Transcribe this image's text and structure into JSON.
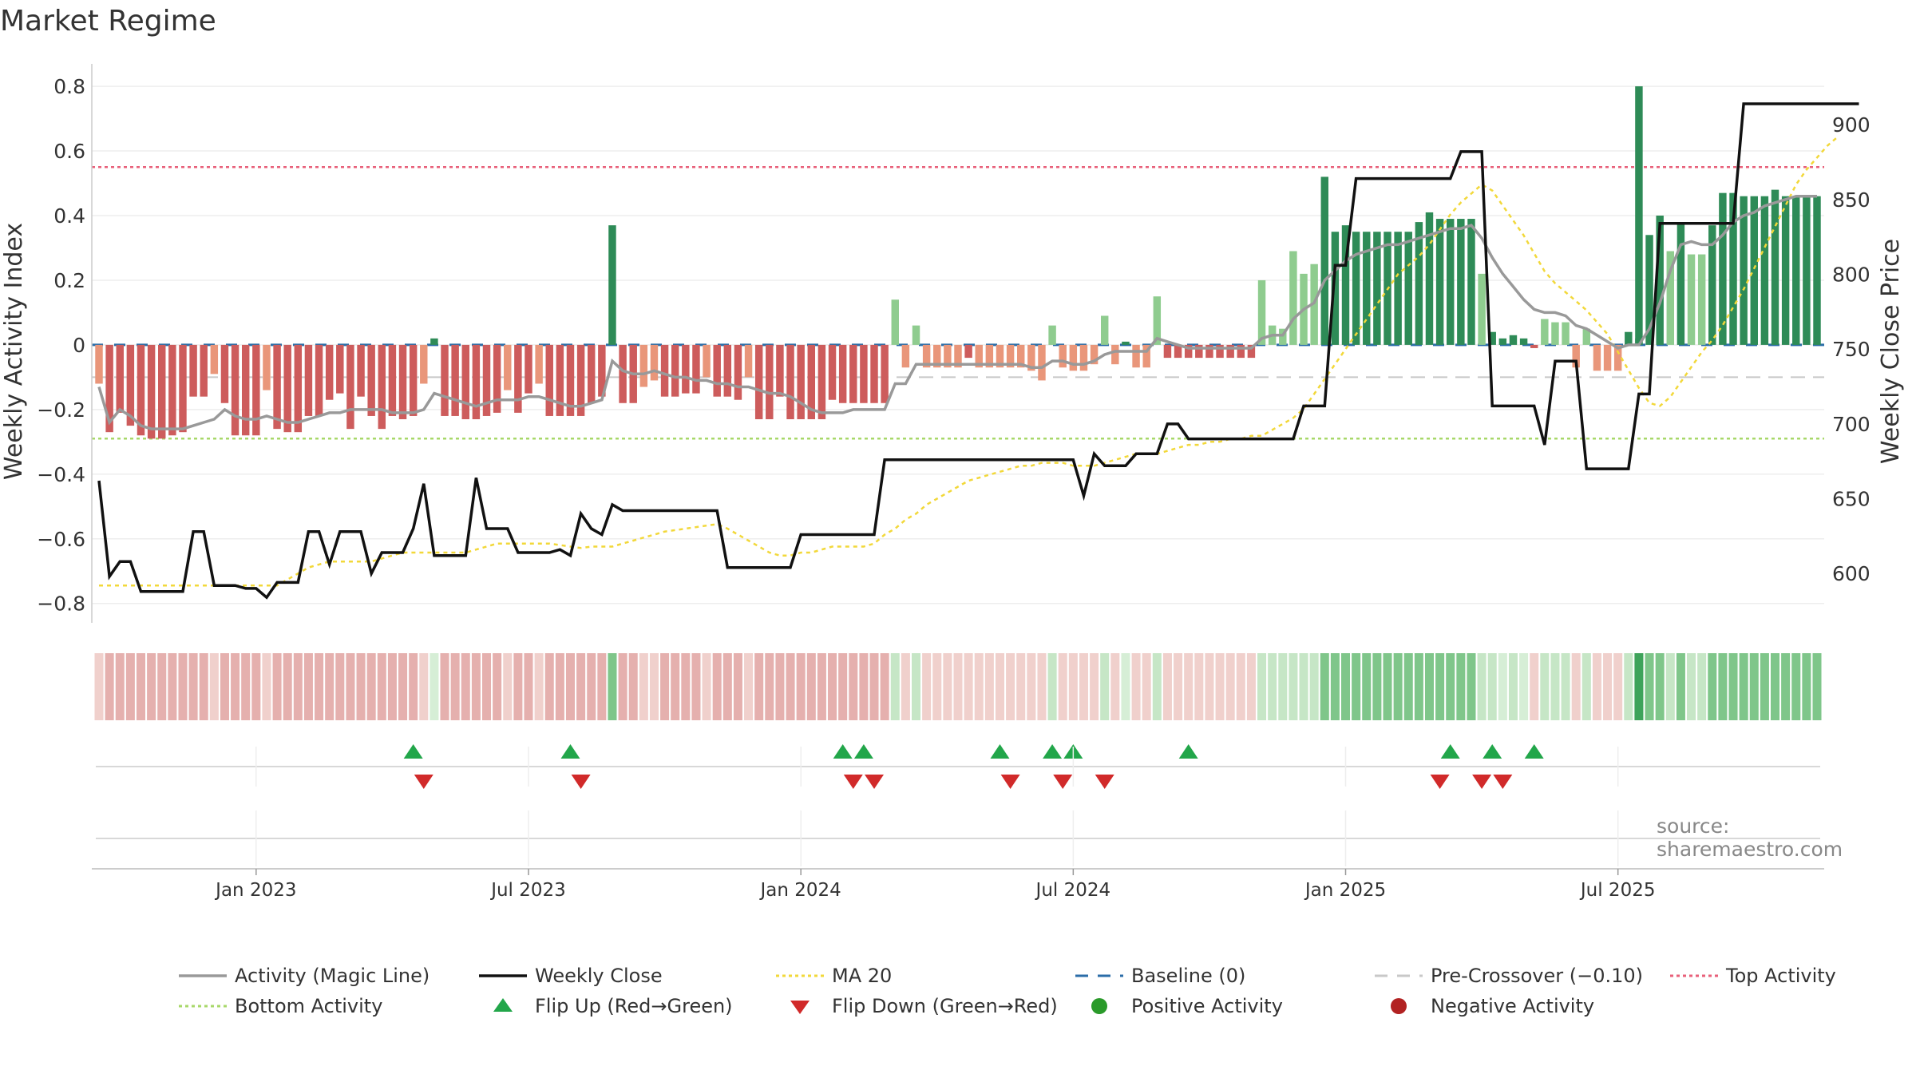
{
  "title": "Market Regime",
  "source": "source: sharemaestro.com",
  "colors": {
    "magic": "#999999",
    "close": "#111111",
    "ma20": "#f2d83a",
    "baseline": "#2b6da8",
    "precross": "#c8c8c8",
    "top": "#e8607a",
    "bottom": "#a8d86a",
    "green_strong": "#2e8b57",
    "green_light": "#8fcc8f",
    "red_strong": "#cd5c5c",
    "red_light": "#e9967a",
    "flip_up": "#22a64a",
    "flip_down": "#d12a2a",
    "pos_dot": "#2a9a2a",
    "neg_dot": "#b22222"
  },
  "chart_data": {
    "type": "bar",
    "title": "Market Regime",
    "ylabel": "Weekly Activity Index",
    "y2label": "Weekly Close Price",
    "ylim": [
      -0.86,
      0.82
    ],
    "y2lim": [
      567,
      930
    ],
    "yticks": [
      "0.8",
      "0.6",
      "0.4",
      "0.2",
      "0",
      "−0.2",
      "−0.4",
      "−0.6",
      "−0.8"
    ],
    "y2ticks": [
      "900",
      "850",
      "800",
      "750",
      "700",
      "650",
      "600"
    ],
    "xticks": [
      "Jan 2023",
      "Jul 2023",
      "Jan 2024",
      "Jul 2024",
      "Jan 2025",
      "Jul 2025"
    ],
    "xtick_positions_week": [
      15,
      41,
      67,
      93,
      119,
      145
    ],
    "reference_lines": {
      "baseline": 0,
      "pre_crossover": -0.1,
      "top_activity": 0.55,
      "bottom_activity": -0.29
    },
    "activity": [
      -0.12,
      -0.27,
      -0.21,
      -0.25,
      -0.28,
      -0.29,
      -0.29,
      -0.28,
      -0.27,
      -0.16,
      -0.16,
      -0.09,
      -0.18,
      -0.28,
      -0.28,
      -0.28,
      -0.14,
      -0.26,
      -0.27,
      -0.27,
      -0.22,
      -0.22,
      -0.17,
      -0.15,
      -0.26,
      -0.16,
      -0.22,
      -0.26,
      -0.22,
      -0.23,
      -0.22,
      -0.12,
      0.02,
      -0.22,
      -0.22,
      -0.23,
      -0.23,
      -0.22,
      -0.21,
      -0.14,
      -0.21,
      -0.15,
      -0.12,
      -0.22,
      -0.22,
      -0.22,
      -0.22,
      -0.18,
      -0.16,
      0.37,
      -0.18,
      -0.18,
      -0.13,
      -0.11,
      -0.16,
      -0.16,
      -0.15,
      -0.15,
      -0.1,
      -0.16,
      -0.16,
      -0.17,
      -0.1,
      -0.23,
      -0.23,
      -0.16,
      -0.23,
      -0.23,
      -0.23,
      -0.23,
      -0.17,
      -0.18,
      -0.18,
      -0.18,
      -0.18,
      -0.18,
      0.14,
      -0.07,
      0.06,
      -0.07,
      -0.07,
      -0.07,
      -0.07,
      -0.04,
      -0.07,
      -0.07,
      -0.07,
      -0.07,
      -0.07,
      -0.08,
      -0.11,
      0.06,
      -0.07,
      -0.08,
      -0.08,
      -0.06,
      0.09,
      -0.06,
      0.01,
      -0.07,
      -0.07,
      0.15,
      -0.04,
      -0.04,
      -0.04,
      -0.04,
      -0.04,
      -0.04,
      -0.04,
      -0.04,
      -0.04,
      0.2,
      0.06,
      0.05,
      0.29,
      0.22,
      0.25,
      0.52,
      0.35,
      0.37,
      0.35,
      0.35,
      0.35,
      0.35,
      0.35,
      0.35,
      0.38,
      0.41,
      0.39,
      0.39,
      0.39,
      0.39,
      0.22,
      0.04,
      0.02,
      0.03,
      0.02,
      -0.01,
      0.08,
      0.07,
      0.07,
      -0.07,
      0.05,
      -0.08,
      -0.08,
      -0.08,
      0.04,
      0.02,
      0.34,
      0.4,
      0.29,
      0.38,
      0.28,
      0.28,
      0.37,
      0.47,
      0.47,
      0.46,
      0.46,
      0.46,
      0.48,
      0.46,
      0.46,
      0.46,
      0.46
    ],
    "activity_spike": {
      "week": 147,
      "value": 0.8
    },
    "weekly_close": [
      662,
      598,
      608,
      608,
      588,
      588,
      588,
      588,
      588,
      628,
      628,
      592,
      592,
      592,
      590,
      590,
      584,
      594,
      594,
      594,
      628,
      628,
      606,
      628,
      628,
      628,
      600,
      614,
      614,
      614,
      630,
      660,
      612,
      612,
      612,
      612,
      664,
      630,
      630,
      630,
      614,
      614,
      614,
      614,
      616,
      612,
      640,
      630,
      626,
      646,
      642,
      642,
      642,
      642,
      642,
      642,
      642,
      642,
      642,
      642,
      604,
      604,
      604,
      604,
      604,
      604,
      604,
      626,
      626,
      626,
      626,
      626,
      626,
      626,
      626,
      676,
      676,
      676,
      676,
      676,
      676,
      676,
      676,
      676,
      676,
      676,
      676,
      676,
      676,
      676,
      676,
      676,
      676,
      676,
      652,
      680,
      672,
      672,
      672,
      680,
      680,
      680,
      700,
      700,
      690,
      690,
      690,
      690,
      690,
      690,
      690,
      690,
      690,
      690,
      690,
      712,
      712,
      712,
      806,
      806,
      864,
      864,
      864,
      864,
      864,
      864,
      864,
      864,
      864,
      864,
      882,
      882,
      882,
      712,
      712,
      712,
      712,
      712,
      686,
      742,
      742,
      742,
      670,
      670,
      670,
      670,
      670,
      720,
      720,
      834,
      834,
      834,
      834,
      834,
      834,
      834,
      834,
      914,
      914,
      914,
      914,
      914,
      914,
      914,
      914,
      914,
      914,
      914,
      914
    ],
    "magic_line": [
      -0.13,
      -0.24,
      -0.2,
      -0.22,
      -0.25,
      -0.26,
      -0.26,
      -0.26,
      -0.26,
      -0.25,
      -0.24,
      -0.23,
      -0.2,
      -0.22,
      -0.23,
      -0.23,
      -0.22,
      -0.23,
      -0.24,
      -0.24,
      -0.23,
      -0.22,
      -0.21,
      -0.21,
      -0.2,
      -0.2,
      -0.2,
      -0.2,
      -0.21,
      -0.21,
      -0.21,
      -0.2,
      -0.15,
      -0.16,
      -0.17,
      -0.18,
      -0.19,
      -0.18,
      -0.17,
      -0.17,
      -0.17,
      -0.16,
      -0.16,
      -0.17,
      -0.18,
      -0.19,
      -0.19,
      -0.18,
      -0.17,
      -0.05,
      -0.08,
      -0.09,
      -0.09,
      -0.08,
      -0.09,
      -0.1,
      -0.1,
      -0.11,
      -0.11,
      -0.12,
      -0.12,
      -0.13,
      -0.13,
      -0.14,
      -0.15,
      -0.15,
      -0.16,
      -0.18,
      -0.2,
      -0.21,
      -0.21,
      -0.21,
      -0.2,
      -0.2,
      -0.2,
      -0.2,
      -0.12,
      -0.12,
      -0.06,
      -0.06,
      -0.06,
      -0.06,
      -0.06,
      -0.06,
      -0.06,
      -0.06,
      -0.06,
      -0.06,
      -0.06,
      -0.07,
      -0.07,
      -0.05,
      -0.05,
      -0.06,
      -0.06,
      -0.05,
      -0.03,
      -0.02,
      -0.02,
      -0.02,
      -0.02,
      0.02,
      0.01,
      0.0,
      -0.01,
      -0.01,
      -0.01,
      -0.01,
      -0.01,
      -0.01,
      -0.01,
      0.02,
      0.03,
      0.03,
      0.08,
      0.11,
      0.13,
      0.2,
      0.23,
      0.26,
      0.28,
      0.29,
      0.3,
      0.31,
      0.31,
      0.32,
      0.33,
      0.34,
      0.35,
      0.36,
      0.36,
      0.37,
      0.33,
      0.27,
      0.22,
      0.18,
      0.14,
      0.11,
      0.1,
      0.1,
      0.09,
      0.06,
      0.05,
      0.03,
      0.01,
      -0.01,
      0.0,
      0.0,
      0.05,
      0.13,
      0.23,
      0.31,
      0.32,
      0.31,
      0.31,
      0.34,
      0.38,
      0.4,
      0.41,
      0.43,
      0.44,
      0.45,
      0.46,
      0.46,
      0.46
    ],
    "ma20": [
      592,
      592,
      592,
      592,
      592,
      592,
      592,
      592,
      592,
      592,
      592,
      592,
      592,
      592,
      592,
      592,
      592,
      592,
      596,
      600,
      604,
      606,
      608,
      608,
      608,
      608,
      608,
      610,
      612,
      614,
      614,
      614,
      614,
      614,
      614,
      614,
      616,
      618,
      620,
      620,
      620,
      620,
      620,
      620,
      619,
      618,
      617,
      618,
      618,
      618,
      620,
      622,
      624,
      626,
      628,
      629,
      630,
      631,
      632,
      633,
      630,
      626,
      622,
      618,
      614,
      612,
      612,
      614,
      614,
      616,
      618,
      618,
      618,
      618,
      620,
      626,
      630,
      636,
      640,
      646,
      650,
      654,
      658,
      662,
      664,
      666,
      668,
      670,
      672,
      672,
      674,
      674,
      674,
      672,
      672,
      672,
      674,
      676,
      678,
      680,
      680,
      680,
      682,
      684,
      686,
      686,
      688,
      688,
      690,
      690,
      692,
      692,
      696,
      700,
      704,
      710,
      720,
      730,
      740,
      750,
      760,
      770,
      780,
      790,
      800,
      806,
      812,
      820,
      830,
      840,
      848,
      854,
      860,
      856,
      846,
      836,
      826,
      814,
      802,
      794,
      788,
      782,
      776,
      768,
      760,
      748,
      736,
      724,
      714,
      712,
      718,
      728,
      738,
      748,
      756,
      766,
      778,
      790,
      804,
      818,
      832,
      846,
      860,
      870,
      878,
      886,
      892
    ],
    "flips_up": [
      30,
      45,
      71,
      73,
      86,
      91,
      93,
      104,
      129,
      133,
      137
    ],
    "flips_down": [
      31,
      46,
      72,
      74,
      87,
      92,
      96,
      128,
      132,
      134
    ]
  },
  "legend": [
    {
      "label": "Activity (Magic Line)",
      "sym": "line",
      "color": "#999999"
    },
    {
      "label": "Weekly Close",
      "sym": "line",
      "color": "#111111"
    },
    {
      "label": "MA 20",
      "sym": "dots",
      "color": "#f2d83a"
    },
    {
      "label": "Baseline (0)",
      "sym": "dash",
      "color": "#2b6da8"
    },
    {
      "label": "Pre-Crossover (−0.10)",
      "sym": "dash",
      "color": "#c8c8c8"
    },
    {
      "label": "Top Activity",
      "sym": "dots",
      "color": "#e8607a"
    },
    {
      "label": "Bottom Activity",
      "sym": "dots",
      "color": "#a8d86a"
    },
    {
      "label": "Flip Up (Red→Green)",
      "sym": "tri-up",
      "color": "#22a64a"
    },
    {
      "label": "Flip Down (Green→Red)",
      "sym": "tri-down",
      "color": "#d12a2a"
    },
    {
      "label": "Positive Activity",
      "sym": "dot",
      "color": "#2a9a2a"
    },
    {
      "label": "Negative Activity",
      "sym": "dot",
      "color": "#b22222"
    }
  ]
}
